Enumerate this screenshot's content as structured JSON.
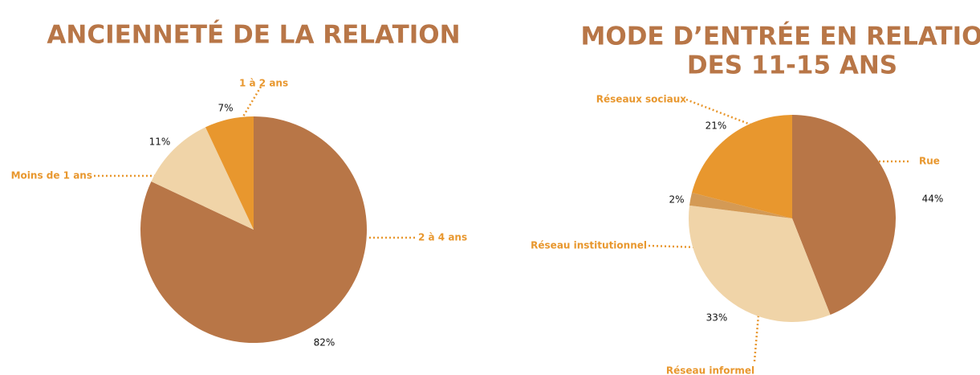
{
  "chart_data": [
    {
      "type": "pie",
      "title": "ANCIENNETÉ DE LA RELATION",
      "categories": [
        "2 à 4 ans",
        "Moins de 1 ans",
        "1 à 2 ans"
      ],
      "values": [
        82,
        11,
        7
      ],
      "value_labels": [
        "82%",
        "11%",
        "7%"
      ],
      "colors": [
        "#b87647",
        "#f0d4a8",
        "#e8972e"
      ]
    },
    {
      "type": "pie",
      "title": [
        "MODE D’ENTRÉE EN RELATION",
        "DES 11-15 ANS"
      ],
      "categories": [
        "Rue",
        "Réseau informel",
        "Réseau institutionnel",
        "Réseaux sociaux"
      ],
      "values": [
        44,
        33,
        2,
        21
      ],
      "value_labels": [
        "44%",
        "33%",
        "2%",
        "21%"
      ],
      "colors": [
        "#b87647",
        "#f0d4a8",
        "#d49a55",
        "#e8972e"
      ]
    }
  ]
}
